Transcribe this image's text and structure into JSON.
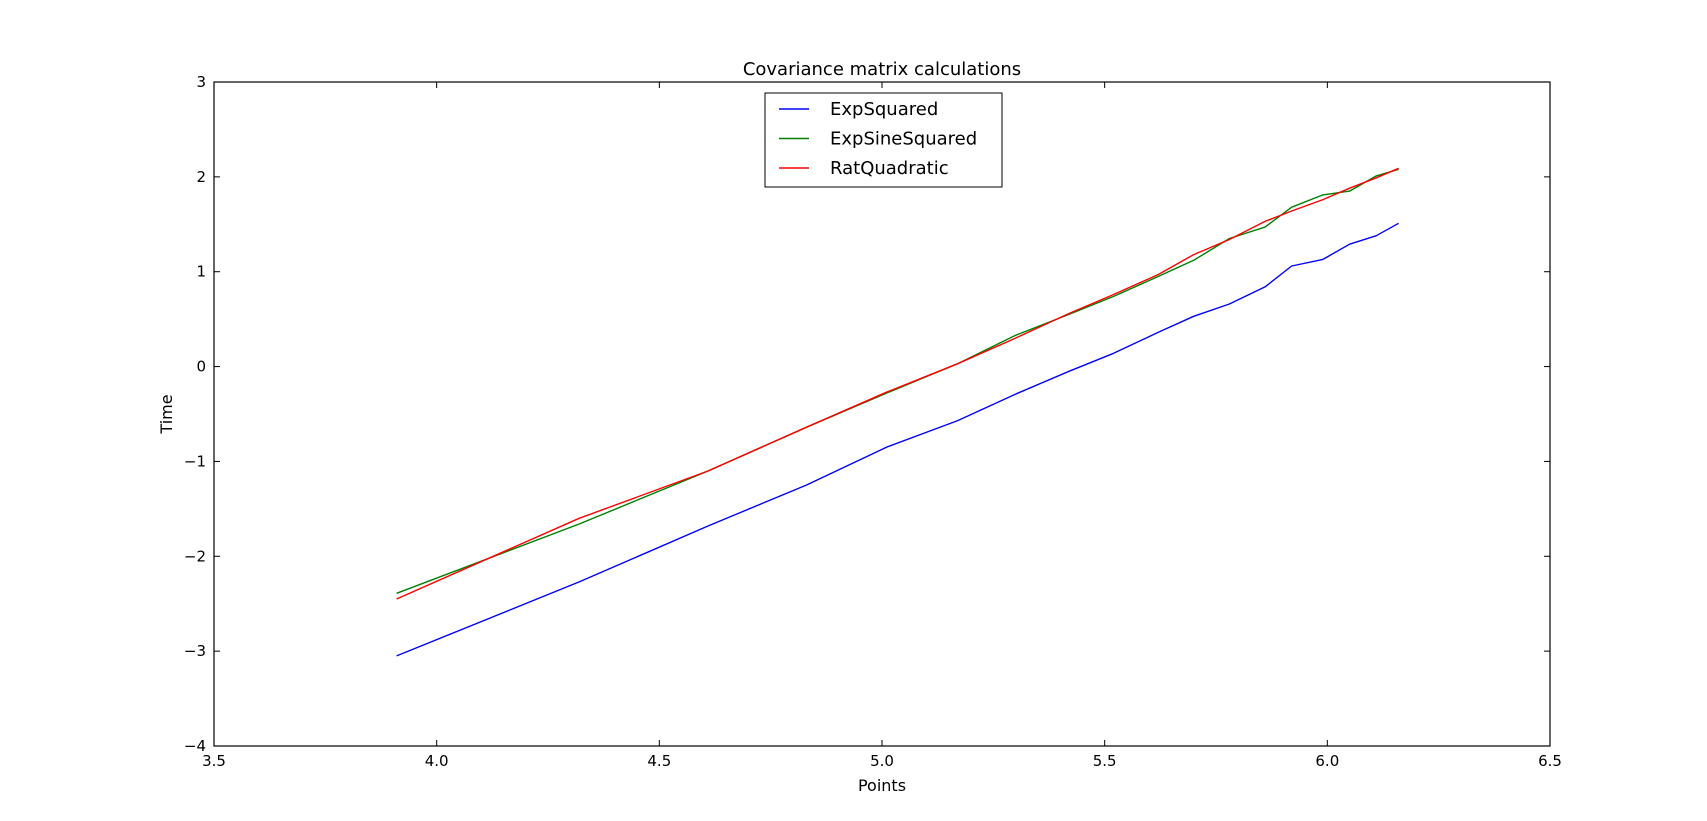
{
  "chart_data": {
    "type": "line",
    "title": "Covariance matrix calculations",
    "xlabel": "Points",
    "ylabel": "Time",
    "xlim": [
      3.5,
      6.5
    ],
    "ylim": [
      -4,
      3
    ],
    "xticks": [
      3.5,
      4.0,
      4.5,
      5.0,
      5.5,
      6.0,
      6.5
    ],
    "xtick_labels": [
      "3.5",
      "4.0",
      "4.5",
      "5.0",
      "5.5",
      "6.0",
      "6.5"
    ],
    "yticks": [
      -4,
      -3,
      -2,
      -1,
      0,
      1,
      2,
      3
    ],
    "ytick_labels": [
      "−4",
      "−3",
      "−2",
      "−1",
      "0",
      "1",
      "2",
      "3"
    ],
    "grid": false,
    "legend_position": "upper-center",
    "series": [
      {
        "name": "ExpSquared",
        "color": "#0000ff",
        "x": [
          3.91,
          4.32,
          4.61,
          4.83,
          5.01,
          5.17,
          5.3,
          5.42,
          5.52,
          5.62,
          5.7,
          5.78,
          5.86,
          5.92,
          5.99,
          6.05,
          6.11,
          6.16
        ],
        "y": [
          -3.05,
          -2.27,
          -1.68,
          -1.25,
          -0.85,
          -0.57,
          -0.29,
          -0.05,
          0.14,
          0.36,
          0.53,
          0.66,
          0.84,
          1.06,
          1.13,
          1.29,
          1.38,
          1.51
        ]
      },
      {
        "name": "ExpSineSquared",
        "color": "#008000",
        "x": [
          3.91,
          4.32,
          4.61,
          4.83,
          5.01,
          5.17,
          5.3,
          5.42,
          5.52,
          5.62,
          5.7,
          5.78,
          5.86,
          5.92,
          5.99,
          6.05,
          6.11,
          6.16
        ],
        "y": [
          -2.39,
          -1.66,
          -1.1,
          -0.64,
          -0.28,
          0.03,
          0.33,
          0.55,
          0.74,
          0.95,
          1.12,
          1.35,
          1.47,
          1.68,
          1.81,
          1.85,
          2.01,
          2.08
        ]
      },
      {
        "name": "RatQuadratic",
        "color": "#ff0000",
        "x": [
          3.91,
          4.32,
          4.61,
          4.83,
          5.01,
          5.17,
          5.3,
          5.42,
          5.52,
          5.62,
          5.7,
          5.78,
          5.86,
          5.92,
          5.99,
          6.05,
          6.11,
          6.16
        ],
        "y": [
          -2.45,
          -1.6,
          -1.1,
          -0.64,
          -0.27,
          0.03,
          0.3,
          0.56,
          0.76,
          0.97,
          1.18,
          1.34,
          1.53,
          1.64,
          1.76,
          1.88,
          1.99,
          2.09
        ]
      }
    ]
  }
}
